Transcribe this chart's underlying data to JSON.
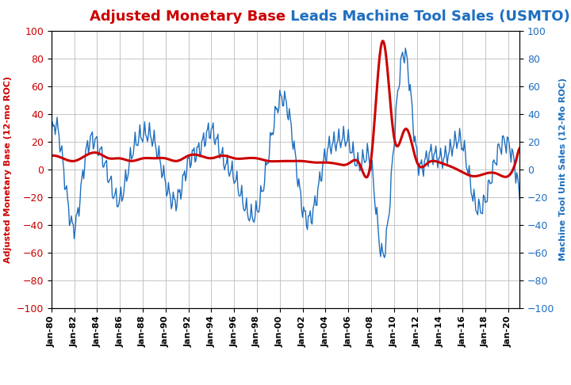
{
  "title_part1": "Adjusted Monetary Base",
  "title_part2": " Leads Machine Tool Sales (USMTO)",
  "ylabel_left": "Adjusted Monetary Base (12-mo ROC)",
  "ylabel_right": "Machine Tool Unit Sales (12-Mo ROC)",
  "ylim": [
    -100,
    100
  ],
  "color_red": "#CC0000",
  "color_blue": "#1F6FBF",
  "background_color": "#FFFFFF",
  "grid_color": "#BBBBBB",
  "x_tick_labels": [
    "Jan-80",
    "Jan-82",
    "Jan-84",
    "Jan-86",
    "Jan-88",
    "Jan-90",
    "Jan-92",
    "Jan-94",
    "Jan-96",
    "Jan-98",
    "Jan-00",
    "Jan-02",
    "Jan-04",
    "Jan-06",
    "Jan-08",
    "Jan-10",
    "Jan-12",
    "Jan-14",
    "Jan-16",
    "Jan-18",
    "Jan-20"
  ],
  "yticks": [
    -100,
    -80,
    -60,
    -40,
    -20,
    0,
    20,
    40,
    60,
    80,
    100
  ],
  "title_fontsize": 13,
  "axis_label_fontsize": 8,
  "tick_fontsize": 9,
  "xtick_fontsize": 8
}
